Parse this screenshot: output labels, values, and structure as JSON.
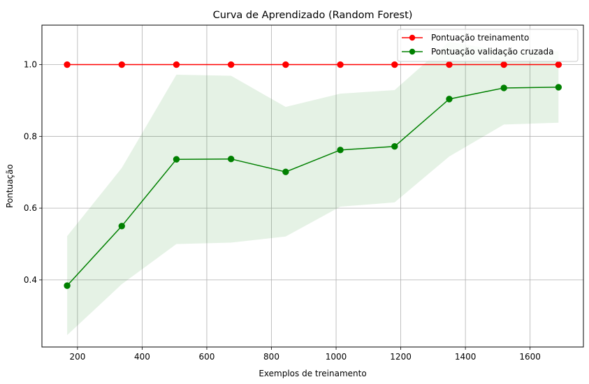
{
  "chart_data": {
    "type": "line",
    "title": "Curva de Aprendizado (Random Forest)",
    "xlabel": "Exemplos de treinamento",
    "ylabel": "Pontuação",
    "xlim": [
      90,
      1765
    ],
    "ylim": [
      0.213,
      1.11
    ],
    "xticks": [
      200,
      400,
      600,
      800,
      1000,
      1200,
      1400,
      1600
    ],
    "yticks": [
      0.4,
      0.6,
      0.8,
      1.0
    ],
    "ytick_labels": [
      "0.4",
      "0.6",
      "0.8",
      "1.0"
    ],
    "grid": true,
    "legend_position": "top-right",
    "x": [
      168,
      337,
      506,
      675,
      844,
      1013,
      1181,
      1350,
      1519,
      1688
    ],
    "series": [
      {
        "name": "Pontuação treinamento",
        "color": "#ff0000",
        "marker": "circle",
        "values": [
          1.0,
          1.0,
          1.0,
          1.0,
          1.0,
          1.0,
          1.0,
          1.0,
          1.0,
          1.0
        ],
        "band_lower": [
          1.0,
          1.0,
          1.0,
          1.0,
          1.0,
          1.0,
          1.0,
          1.0,
          1.0,
          1.0
        ],
        "band_upper": [
          1.0,
          1.0,
          1.0,
          1.0,
          1.0,
          1.0,
          1.0,
          1.0,
          1.0,
          1.0
        ]
      },
      {
        "name": "Pontuação validação cruzada",
        "color": "#008000",
        "marker": "circle",
        "values": [
          0.384,
          0.55,
          0.736,
          0.737,
          0.701,
          0.762,
          0.772,
          0.904,
          0.935,
          0.937
        ],
        "band_lower": [
          0.246,
          0.388,
          0.5,
          0.504,
          0.521,
          0.604,
          0.616,
          0.744,
          0.833,
          0.838
        ],
        "band_upper": [
          0.522,
          0.712,
          0.972,
          0.969,
          0.882,
          0.919,
          0.929,
          1.064,
          1.037,
          1.037
        ]
      }
    ]
  }
}
